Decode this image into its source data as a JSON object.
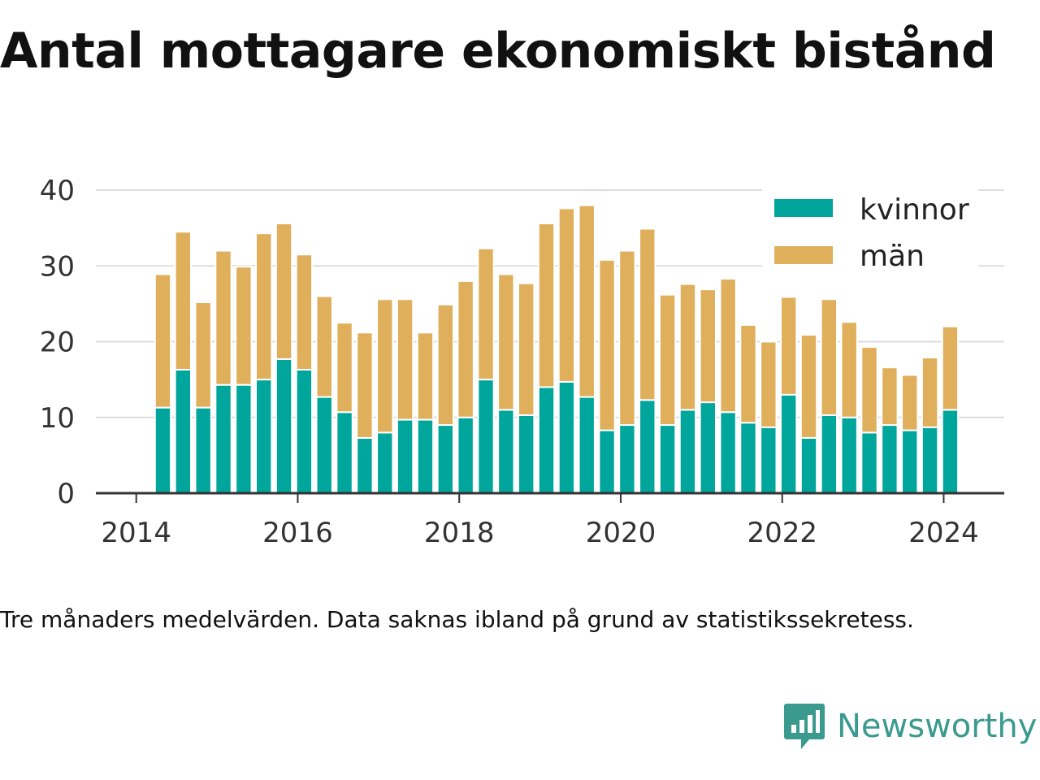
{
  "title": "Antal mottagare ekonomiskt bistånd",
  "caption": "Tre månaders medelvärden. Data saknas ibland på grund av statistikssekretess.",
  "brand": {
    "name": "Newsworthy",
    "color": "#3a9a8d"
  },
  "colors": {
    "kvinnor": "#00a69c",
    "man": "#dfaf5c",
    "grid": "#dddddd",
    "axis": "#333333"
  },
  "chart_data": {
    "type": "bar",
    "stacked": true,
    "xlim": [
      2013.5,
      2024.75
    ],
    "ylim": [
      0,
      40
    ],
    "yticks": [
      0,
      10,
      20,
      30,
      40
    ],
    "xticks": [
      2014,
      2016,
      2018,
      2020,
      2022,
      2024
    ],
    "grid": true,
    "legend_position": "top-right",
    "x": [
      2014.33,
      2014.58,
      2014.83,
      2015.08,
      2015.33,
      2015.58,
      2015.83,
      2016.08,
      2016.33,
      2016.58,
      2016.83,
      2017.08,
      2017.33,
      2017.58,
      2017.83,
      2018.08,
      2018.33,
      2018.58,
      2018.83,
      2019.08,
      2019.33,
      2019.58,
      2019.83,
      2020.08,
      2020.33,
      2020.58,
      2020.83,
      2021.08,
      2021.33,
      2021.58,
      2021.83,
      2022.08,
      2022.33,
      2022.58,
      2022.83,
      2023.08,
      2023.33,
      2023.58,
      2023.83,
      2024.08
    ],
    "series": [
      {
        "name": "kvinnor",
        "values": [
          11.3,
          16.3,
          11.3,
          14.3,
          14.3,
          15.0,
          17.7,
          16.3,
          12.7,
          10.7,
          7.3,
          8.0,
          9.7,
          9.7,
          9.0,
          10.0,
          15.0,
          11.0,
          10.3,
          14.0,
          14.7,
          12.7,
          8.3,
          9.0,
          12.3,
          9.0,
          11.0,
          12.0,
          10.7,
          9.3,
          8.7,
          13.0,
          7.3,
          10.3,
          10.0,
          8.0,
          9.0,
          8.3,
          8.7,
          11.0
        ]
      },
      {
        "name": "män",
        "values": [
          17.6,
          18.2,
          13.9,
          17.7,
          15.6,
          19.3,
          17.9,
          15.2,
          13.3,
          11.8,
          13.9,
          17.6,
          15.9,
          11.5,
          15.9,
          18.0,
          17.3,
          17.9,
          17.4,
          21.6,
          22.9,
          25.3,
          22.5,
          23.0,
          22.6,
          17.2,
          16.6,
          14.9,
          17.6,
          12.9,
          11.3,
          12.9,
          13.6,
          15.3,
          12.6,
          11.3,
          7.6,
          7.3,
          9.2,
          11.0
        ]
      }
    ]
  }
}
